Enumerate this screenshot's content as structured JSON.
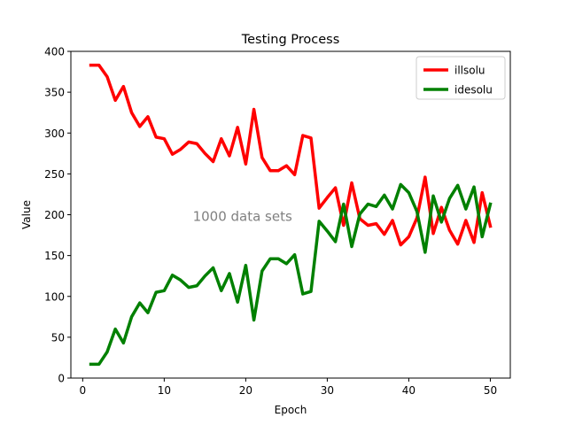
{
  "chart_data": {
    "type": "line",
    "title": "Testing Process",
    "xlabel": "Epoch",
    "ylabel": "Value",
    "xlim": [
      -1.45,
      52.45
    ],
    "ylim": [
      0,
      400
    ],
    "xticks": [
      0,
      10,
      20,
      30,
      40,
      50
    ],
    "yticks": [
      0,
      50,
      100,
      150,
      200,
      250,
      300,
      350,
      400
    ],
    "grid": false,
    "legend_position": "top-right",
    "annotation": "1000 data sets",
    "annotation_position": {
      "x": 13.5,
      "y": 198
    },
    "x": [
      1,
      2,
      3,
      4,
      5,
      6,
      7,
      8,
      9,
      10,
      11,
      12,
      13,
      14,
      15,
      16,
      17,
      18,
      19,
      20,
      21,
      22,
      23,
      24,
      25,
      26,
      27,
      28,
      29,
      30,
      31,
      32,
      33,
      34,
      35,
      36,
      37,
      38,
      39,
      40,
      41,
      42,
      43,
      44,
      45,
      46,
      47,
      48,
      49,
      50
    ],
    "series": [
      {
        "name": "illsolu",
        "color": "#ff0000",
        "values": [
          383,
          383,
          369,
          340,
          357,
          325,
          308,
          320,
          295,
          293,
          274,
          280,
          289,
          287,
          275,
          265,
          293,
          272,
          307,
          262,
          329,
          270,
          254,
          254,
          260,
          249,
          297,
          294,
          208,
          221,
          233,
          187,
          239,
          195,
          187,
          189,
          176,
          193,
          163,
          173,
          196,
          246,
          177,
          209,
          181,
          164,
          193,
          166,
          227,
          186
        ]
      },
      {
        "name": "idesolu",
        "color": "#008000",
        "values": [
          17,
          17,
          32,
          60,
          43,
          75,
          92,
          80,
          105,
          107,
          126,
          120,
          111,
          113,
          125,
          135,
          107,
          128,
          93,
          138,
          71,
          131,
          146,
          146,
          140,
          151,
          103,
          106,
          192,
          180,
          167,
          213,
          161,
          201,
          213,
          210,
          224,
          207,
          237,
          227,
          204,
          154,
          223,
          191,
          220,
          236,
          207,
          234,
          173,
          213
        ]
      }
    ]
  }
}
